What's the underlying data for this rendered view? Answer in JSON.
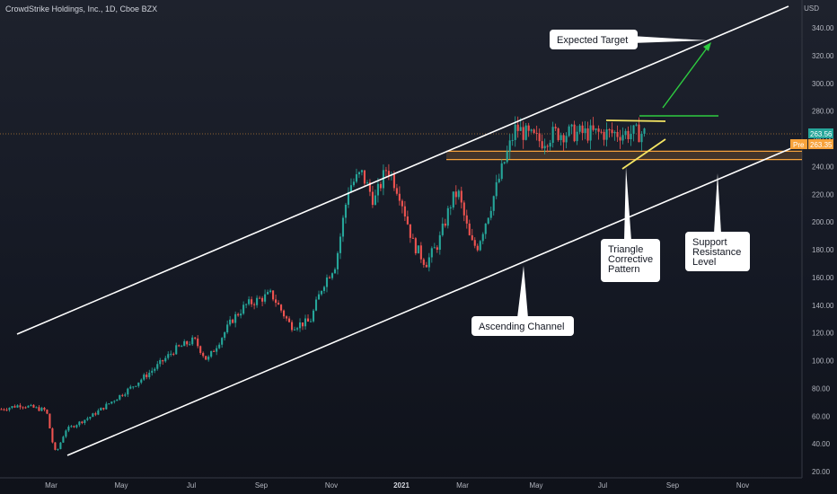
{
  "header": {
    "title": "CrowdStrike Holdings, Inc., 1D, Cboe BZX",
    "currency": "USD"
  },
  "price_tags": {
    "last_price": "263.56",
    "pre_label": "Pre",
    "pre_price": "263.35"
  },
  "colors": {
    "up": "#26a69a",
    "down": "#ef5350",
    "channel": "#ffffff",
    "support": "#f7a23b",
    "triangle": "#f5e663",
    "target": "#2ecc40",
    "callout_bg": "#ffffff",
    "last_tag": "#26a69a",
    "pre_tag": "#f7a23b"
  },
  "annotations": {
    "expected_target": "Expected Target",
    "triangle": [
      "Triangle",
      "Corrective",
      "Pattern"
    ],
    "support_resistance": [
      "Support",
      "Resistance",
      "Level"
    ],
    "ascending_channel": "Ascending Channel"
  },
  "chart_data": {
    "type": "candlestick",
    "title": "CrowdStrike Holdings, Inc., 1D, Cboe BZX",
    "ylabel": "USD",
    "ylim": [
      20,
      350
    ],
    "y_ticks": [
      20,
      40,
      60,
      80,
      100,
      120,
      140,
      160,
      180,
      200,
      220,
      240,
      260,
      280,
      300,
      320,
      340
    ],
    "x_ticks": [
      "Mar",
      "May",
      "Jul",
      "Sep",
      "Nov",
      "2021",
      "Mar",
      "May",
      "Jul",
      "Sep",
      "Nov"
    ],
    "x_range": [
      "2020-01",
      "2021-12"
    ],
    "last_price": 263.56,
    "pre_market_price": 263.35,
    "price_path": [
      [
        0,
        65
      ],
      [
        0.03,
        68
      ],
      [
        0.07,
        64
      ],
      [
        0.08,
        40
      ],
      [
        0.085,
        33
      ],
      [
        0.1,
        50
      ],
      [
        0.14,
        60
      ],
      [
        0.2,
        80
      ],
      [
        0.24,
        95
      ],
      [
        0.27,
        108
      ],
      [
        0.3,
        115
      ],
      [
        0.32,
        100
      ],
      [
        0.36,
        130
      ],
      [
        0.38,
        140
      ],
      [
        0.42,
        148
      ],
      [
        0.45,
        125
      ],
      [
        0.48,
        128
      ],
      [
        0.5,
        155
      ],
      [
        0.52,
        170
      ],
      [
        0.54,
        225
      ],
      [
        0.56,
        235
      ],
      [
        0.58,
        215
      ],
      [
        0.6,
        240
      ],
      [
        0.62,
        220
      ],
      [
        0.64,
        185
      ],
      [
        0.66,
        170
      ],
      [
        0.68,
        185
      ],
      [
        0.7,
        215
      ],
      [
        0.71,
        222
      ],
      [
        0.73,
        185
      ],
      [
        0.74,
        182
      ],
      [
        0.76,
        210
      ],
      [
        0.78,
        240
      ],
      [
        0.8,
        268
      ],
      [
        0.82,
        262
      ],
      [
        0.84,
        258
      ],
      [
        0.86,
        264
      ]
    ],
    "support_resistance_zone": [
      245,
      251
    ],
    "expected_target": 325
  }
}
